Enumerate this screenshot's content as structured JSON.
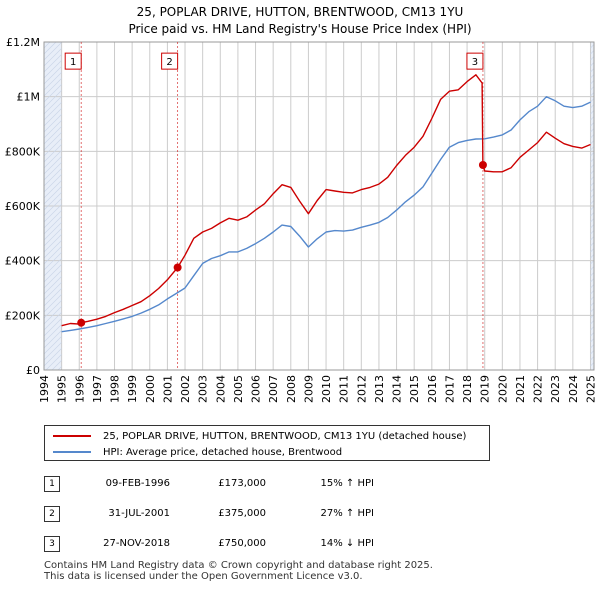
{
  "chart_data": {
    "type": "line",
    "title": "25, POPLAR DRIVE, HUTTON, BRENTWOOD, CM13 1YU",
    "subtitle": "Price paid vs. HM Land Registry's House Price Index (HPI)",
    "xlim": [
      1994,
      2025.2
    ],
    "ylim": [
      0,
      1200000
    ],
    "y_ticks": [
      0,
      200000,
      400000,
      600000,
      800000,
      1000000,
      1200000
    ],
    "y_tick_labels": [
      "£0",
      "£200K",
      "£400K",
      "£600K",
      "£800K",
      "£1M",
      "£1.2M"
    ],
    "x_ticks": [
      1994,
      1995,
      1996,
      1997,
      1998,
      1999,
      2000,
      2001,
      2002,
      2003,
      2004,
      2005,
      2006,
      2007,
      2008,
      2009,
      2010,
      2011,
      2012,
      2013,
      2014,
      2015,
      2016,
      2017,
      2018,
      2019,
      2020,
      2021,
      2022,
      2023,
      2024,
      2025
    ],
    "series": [
      {
        "name": "25, POPLAR DRIVE, HUTTON, BRENTWOOD, CM13 1YU (detached house)",
        "color": "#cc0000",
        "points": [
          [
            1995.0,
            162000
          ],
          [
            1995.5,
            170000
          ],
          [
            1996.0,
            168000
          ],
          [
            1996.11,
            173000
          ],
          [
            1996.5,
            178000
          ],
          [
            1997.0,
            186000
          ],
          [
            1997.5,
            196000
          ],
          [
            1998.0,
            210000
          ],
          [
            1998.5,
            222000
          ],
          [
            1999.0,
            236000
          ],
          [
            1999.5,
            250000
          ],
          [
            2000.0,
            272000
          ],
          [
            2000.5,
            298000
          ],
          [
            2001.0,
            330000
          ],
          [
            2001.58,
            375000
          ],
          [
            2002.0,
            420000
          ],
          [
            2002.5,
            482000
          ],
          [
            2003.0,
            505000
          ],
          [
            2003.5,
            518000
          ],
          [
            2004.0,
            538000
          ],
          [
            2004.5,
            555000
          ],
          [
            2005.0,
            548000
          ],
          [
            2005.5,
            560000
          ],
          [
            2006.0,
            585000
          ],
          [
            2006.5,
            608000
          ],
          [
            2007.0,
            645000
          ],
          [
            2007.5,
            678000
          ],
          [
            2008.0,
            668000
          ],
          [
            2008.5,
            618000
          ],
          [
            2009.0,
            572000
          ],
          [
            2009.5,
            620000
          ],
          [
            2010.0,
            660000
          ],
          [
            2010.5,
            655000
          ],
          [
            2011.0,
            650000
          ],
          [
            2011.5,
            648000
          ],
          [
            2012.0,
            660000
          ],
          [
            2012.5,
            668000
          ],
          [
            2013.0,
            680000
          ],
          [
            2013.5,
            705000
          ],
          [
            2014.0,
            748000
          ],
          [
            2014.5,
            785000
          ],
          [
            2015.0,
            815000
          ],
          [
            2015.5,
            855000
          ],
          [
            2016.0,
            920000
          ],
          [
            2016.5,
            990000
          ],
          [
            2017.0,
            1020000
          ],
          [
            2017.5,
            1025000
          ],
          [
            2018.0,
            1055000
          ],
          [
            2018.5,
            1080000
          ],
          [
            2018.85,
            1050000
          ],
          [
            2018.9,
            750000
          ],
          [
            2019.0,
            728000
          ],
          [
            2019.5,
            725000
          ],
          [
            2020.0,
            725000
          ],
          [
            2020.5,
            740000
          ],
          [
            2021.0,
            778000
          ],
          [
            2021.5,
            805000
          ],
          [
            2022.0,
            832000
          ],
          [
            2022.5,
            870000
          ],
          [
            2023.0,
            848000
          ],
          [
            2023.5,
            828000
          ],
          [
            2024.0,
            818000
          ],
          [
            2024.5,
            812000
          ],
          [
            2025.0,
            825000
          ]
        ]
      },
      {
        "name": "HPI: Average price, detached house, Brentwood",
        "color": "#5588cc",
        "points": [
          [
            1995.0,
            140000
          ],
          [
            1995.5,
            145000
          ],
          [
            1996.0,
            150000
          ],
          [
            1996.5,
            156000
          ],
          [
            1997.0,
            162000
          ],
          [
            1997.5,
            170000
          ],
          [
            1998.0,
            178000
          ],
          [
            1998.5,
            187000
          ],
          [
            1999.0,
            196000
          ],
          [
            1999.5,
            208000
          ],
          [
            2000.0,
            222000
          ],
          [
            2000.5,
            238000
          ],
          [
            2001.0,
            260000
          ],
          [
            2001.5,
            280000
          ],
          [
            2002.0,
            300000
          ],
          [
            2002.5,
            345000
          ],
          [
            2003.0,
            390000
          ],
          [
            2003.5,
            408000
          ],
          [
            2004.0,
            418000
          ],
          [
            2004.5,
            432000
          ],
          [
            2005.0,
            432000
          ],
          [
            2005.5,
            445000
          ],
          [
            2006.0,
            462000
          ],
          [
            2006.5,
            482000
          ],
          [
            2007.0,
            505000
          ],
          [
            2007.5,
            530000
          ],
          [
            2008.0,
            525000
          ],
          [
            2008.5,
            490000
          ],
          [
            2009.0,
            450000
          ],
          [
            2009.5,
            480000
          ],
          [
            2010.0,
            505000
          ],
          [
            2010.5,
            510000
          ],
          [
            2011.0,
            508000
          ],
          [
            2011.5,
            512000
          ],
          [
            2012.0,
            522000
          ],
          [
            2012.5,
            530000
          ],
          [
            2013.0,
            540000
          ],
          [
            2013.5,
            558000
          ],
          [
            2014.0,
            585000
          ],
          [
            2014.5,
            615000
          ],
          [
            2015.0,
            640000
          ],
          [
            2015.5,
            670000
          ],
          [
            2016.0,
            720000
          ],
          [
            2016.5,
            770000
          ],
          [
            2017.0,
            815000
          ],
          [
            2017.5,
            832000
          ],
          [
            2018.0,
            840000
          ],
          [
            2018.5,
            845000
          ],
          [
            2019.0,
            846000
          ],
          [
            2019.5,
            852000
          ],
          [
            2020.0,
            860000
          ],
          [
            2020.5,
            878000
          ],
          [
            2021.0,
            915000
          ],
          [
            2021.5,
            945000
          ],
          [
            2022.0,
            965000
          ],
          [
            2022.5,
            1000000
          ],
          [
            2023.0,
            985000
          ],
          [
            2023.5,
            965000
          ],
          [
            2024.0,
            960000
          ],
          [
            2024.5,
            965000
          ],
          [
            2025.0,
            980000
          ]
        ]
      }
    ],
    "sales": [
      {
        "num": "1",
        "x": 1996.11,
        "y": 173000
      },
      {
        "num": "2",
        "x": 2001.58,
        "y": 375000
      },
      {
        "num": "3",
        "x": 2018.9,
        "y": 750000
      }
    ],
    "label_y": 1130000
  },
  "legend": {
    "red_label": "25, POPLAR DRIVE, HUTTON, BRENTWOOD, CM13 1YU (detached house)",
    "blue_label": "HPI: Average price, detached house, Brentwood"
  },
  "sales_table": [
    {
      "num": "1",
      "date": "09-FEB-1996",
      "price": "£173,000",
      "hpi": "15% ↑ HPI"
    },
    {
      "num": "2",
      "date": "31-JUL-2001",
      "price": "£375,000",
      "hpi": "27% ↑ HPI"
    },
    {
      "num": "3",
      "date": "27-NOV-2018",
      "price": "£750,000",
      "hpi": "14% ↓ HPI"
    }
  ],
  "footer": {
    "line1": "Contains HM Land Registry data © Crown copyright and database right 2025.",
    "line2": "This data is licensed under the Open Government Licence v3.0."
  },
  "colors": {
    "red": "#cc0000",
    "blue": "#5588cc",
    "grid": "#cccccc",
    "shade": "#e8eef8"
  }
}
